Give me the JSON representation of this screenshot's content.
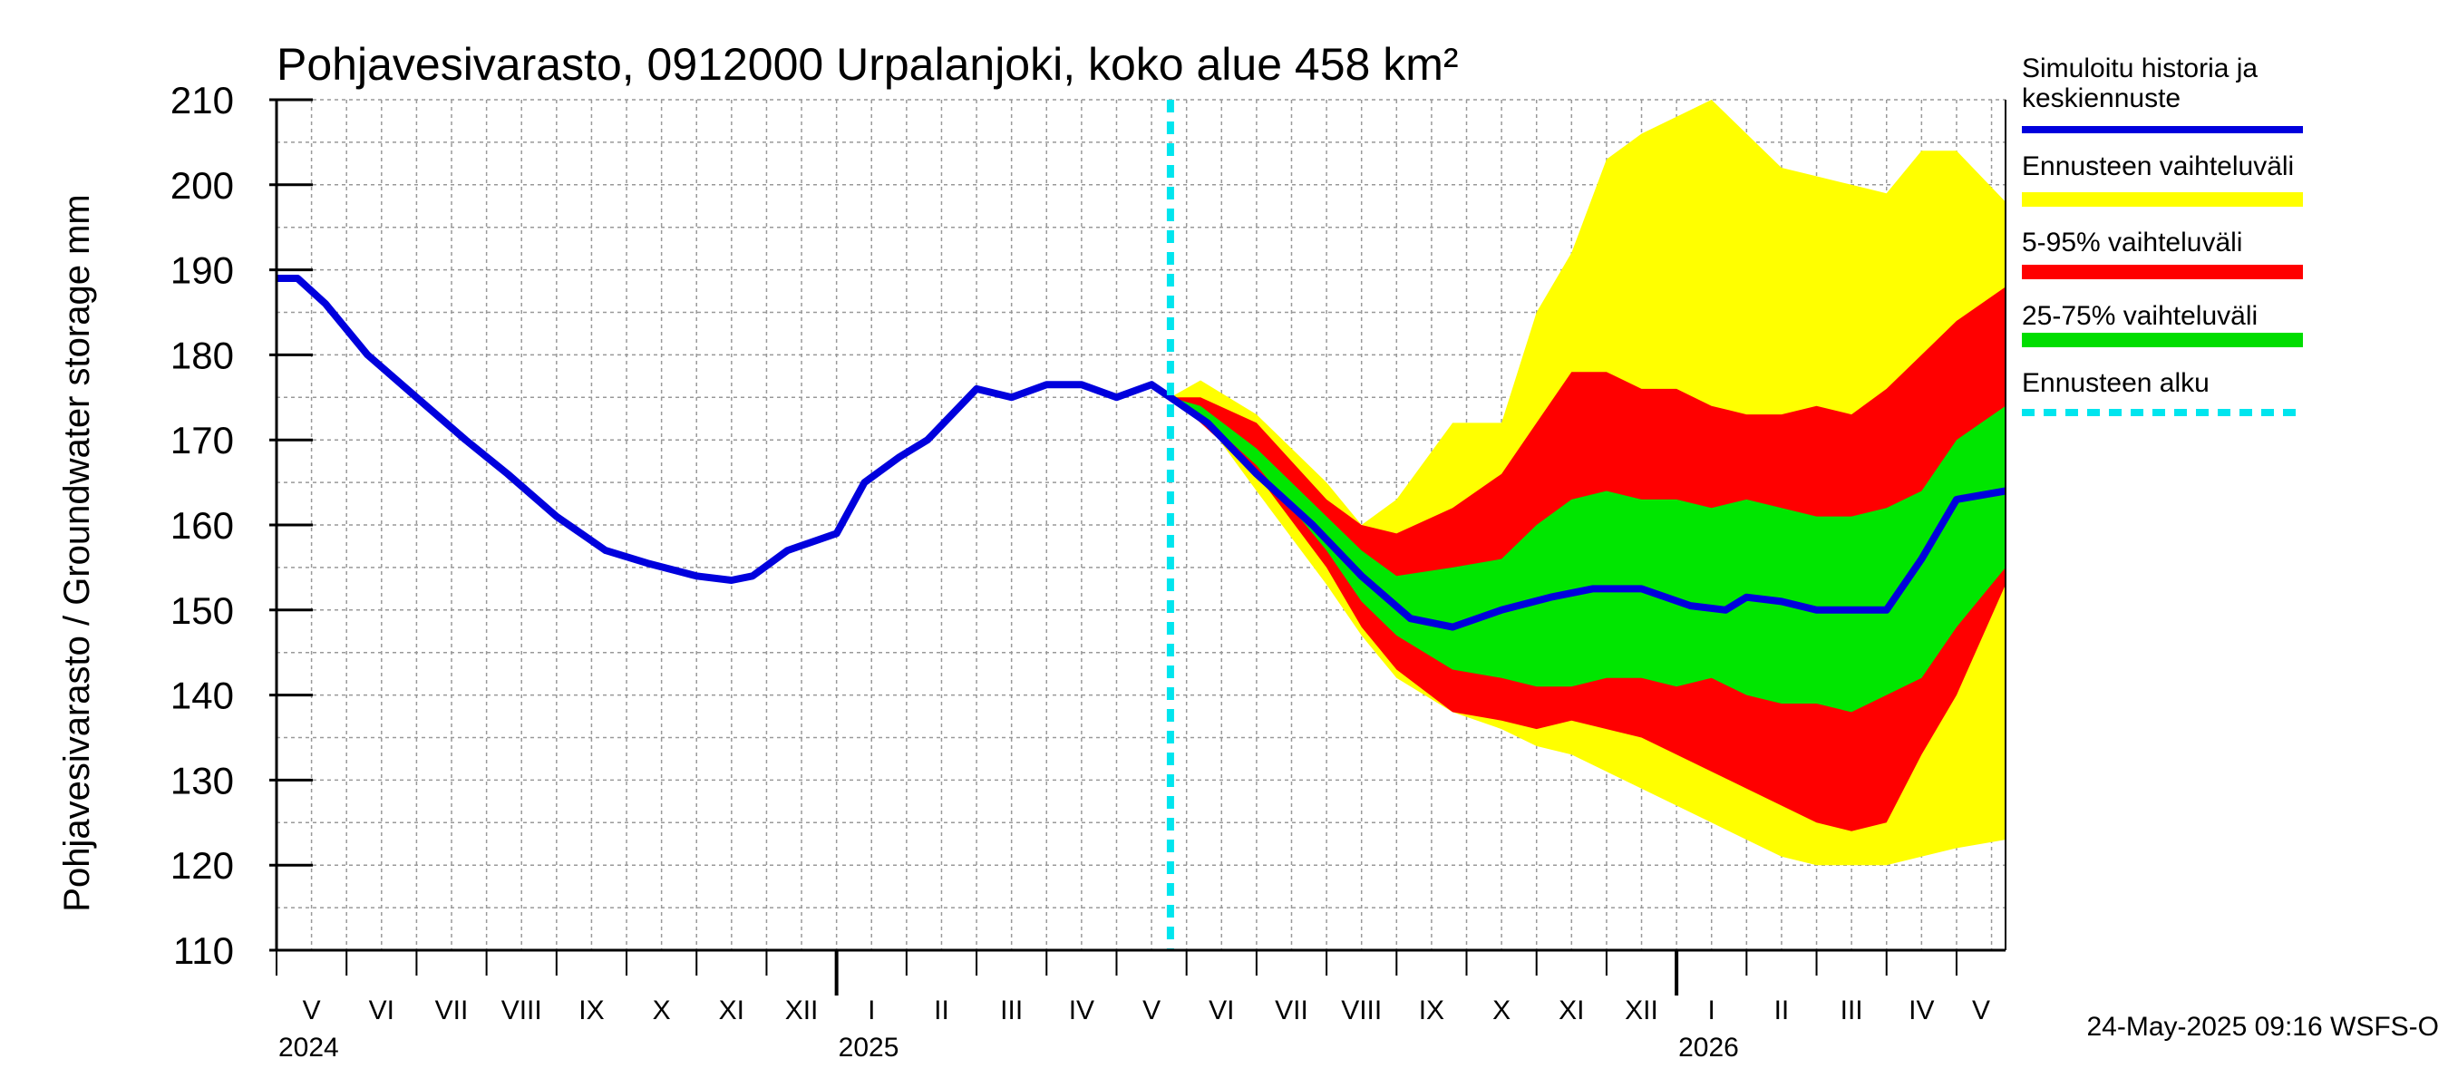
{
  "chart_data": {
    "type": "area",
    "title": "Pohjavesivarasto, 0912000 Urpalanjoki, koko alue 458 km²",
    "ylabel": "Pohjavesivarasto / Groundwater storage   mm",
    "ylim": [
      110,
      210
    ],
    "yticks": [
      "110",
      "120",
      "130",
      "140",
      "150",
      "160",
      "170",
      "180",
      "190",
      "200",
      "210"
    ],
    "x_range": [
      0,
      24.7
    ],
    "month_labels": [
      "V",
      "VI",
      "VII",
      "VIII",
      "IX",
      "X",
      "XI",
      "XII",
      "I",
      "II",
      "III",
      "IV",
      "V",
      "VI",
      "VII",
      "VIII",
      "IX",
      "X",
      "XI",
      "XII",
      "I",
      "II",
      "III",
      "IV",
      "V"
    ],
    "year_labels": [
      {
        "label": "2024",
        "month_index": 0
      },
      {
        "label": "2025",
        "month_index": 8
      },
      {
        "label": "2026",
        "month_index": 20
      }
    ],
    "forecast_start": 12.77,
    "footer": "24-May-2025 09:16 WSFS-O",
    "legend": [
      {
        "label": "Simuloitu historia ja keskiennuste",
        "color": "#0000dd",
        "style": "line"
      },
      {
        "label": "Ennusteen vaihteluväli",
        "color": "#ffff00",
        "style": "band"
      },
      {
        "label": "5-95% vaihteluväli",
        "color": "#ff0000",
        "style": "band"
      },
      {
        "label": "25-75% vaihteluväli",
        "color": "#00dd00",
        "style": "band"
      },
      {
        "label": "Ennusteen alku",
        "color": "#00e5ee",
        "style": "dashed"
      }
    ],
    "series": [
      {
        "name": "Simuloitu historia ja keskiennuste",
        "x": [
          0,
          0.3,
          0.7,
          1.3,
          2,
          2.7,
          3.3,
          4,
          4.7,
          5.3,
          6,
          6.5,
          6.8,
          7.3,
          8,
          8.4,
          8.9,
          9.3,
          10,
          10.5,
          11,
          11.5,
          12,
          12.5,
          12.77,
          13.3,
          14,
          14.8,
          15.5,
          16.2,
          16.8,
          17.5,
          18.2,
          18.8,
          19.5,
          20.2,
          20.7,
          21,
          21.5,
          22,
          22.5,
          23,
          23.5,
          24,
          24.7
        ],
        "values": [
          189,
          189,
          186,
          180,
          175,
          170,
          166,
          161,
          157,
          155.5,
          154,
          153.5,
          154,
          157,
          159,
          165,
          168,
          170,
          176,
          175,
          176.5,
          176.5,
          175,
          176.5,
          175,
          172,
          166,
          160,
          154,
          149,
          148,
          150,
          151.5,
          152.5,
          152.5,
          150.5,
          150,
          151.5,
          151,
          150,
          150,
          150,
          156,
          163,
          164
        ]
      },
      {
        "name": "Ennusteen vaihteluväli",
        "x": [
          12.77,
          13.2,
          14,
          15,
          15.5,
          16,
          16.8,
          17.5,
          18,
          18.5,
          19,
          19.5,
          20,
          20.5,
          21,
          21.5,
          22,
          22.5,
          23,
          23.5,
          24,
          24.7
        ],
        "upper": [
          175,
          177,
          173,
          165,
          160,
          163,
          172,
          172,
          185,
          192,
          203,
          206,
          208,
          210,
          206,
          202,
          201,
          200,
          199,
          204,
          204,
          198
        ],
        "lower": [
          175,
          173,
          164,
          153,
          147,
          142,
          138,
          136,
          134,
          133,
          131,
          129,
          127,
          125,
          123,
          121,
          120,
          120,
          120,
          121,
          122,
          123
        ]
      },
      {
        "name": "5-95% vaihteluväli",
        "x": [
          12.77,
          13.2,
          14,
          15,
          15.5,
          16,
          16.8,
          17.5,
          18,
          18.5,
          19,
          19.5,
          20,
          20.5,
          21,
          21.5,
          22,
          22.5,
          23,
          23.5,
          24,
          24.7
        ],
        "upper": [
          175,
          175,
          172,
          163,
          160,
          159,
          162,
          166,
          172,
          178,
          178,
          176,
          176,
          174,
          173,
          173,
          174,
          173,
          176,
          180,
          184,
          188
        ],
        "lower": [
          175,
          172,
          166,
          155,
          148,
          143,
          138,
          137,
          136,
          137,
          136,
          135,
          133,
          131,
          129,
          127,
          125,
          124,
          125,
          133,
          140,
          153
        ]
      },
      {
        "name": "25-75% vaihteluväli",
        "x": [
          12.77,
          13.2,
          14,
          15,
          15.5,
          16,
          16.8,
          17.5,
          18,
          18.5,
          19,
          19.5,
          20,
          20.5,
          21,
          21.5,
          22,
          22.5,
          23,
          23.5,
          24,
          24.7
        ],
        "upper": [
          175,
          174,
          169,
          161,
          157,
          154,
          155,
          156,
          160,
          163,
          164,
          163,
          163,
          162,
          163,
          162,
          161,
          161,
          162,
          164,
          170,
          174
        ],
        "lower": [
          175,
          173,
          167,
          157,
          151,
          147,
          143,
          142,
          141,
          141,
          142,
          142,
          141,
          142,
          140,
          139,
          139,
          138,
          140,
          142,
          148,
          155
        ]
      }
    ]
  }
}
